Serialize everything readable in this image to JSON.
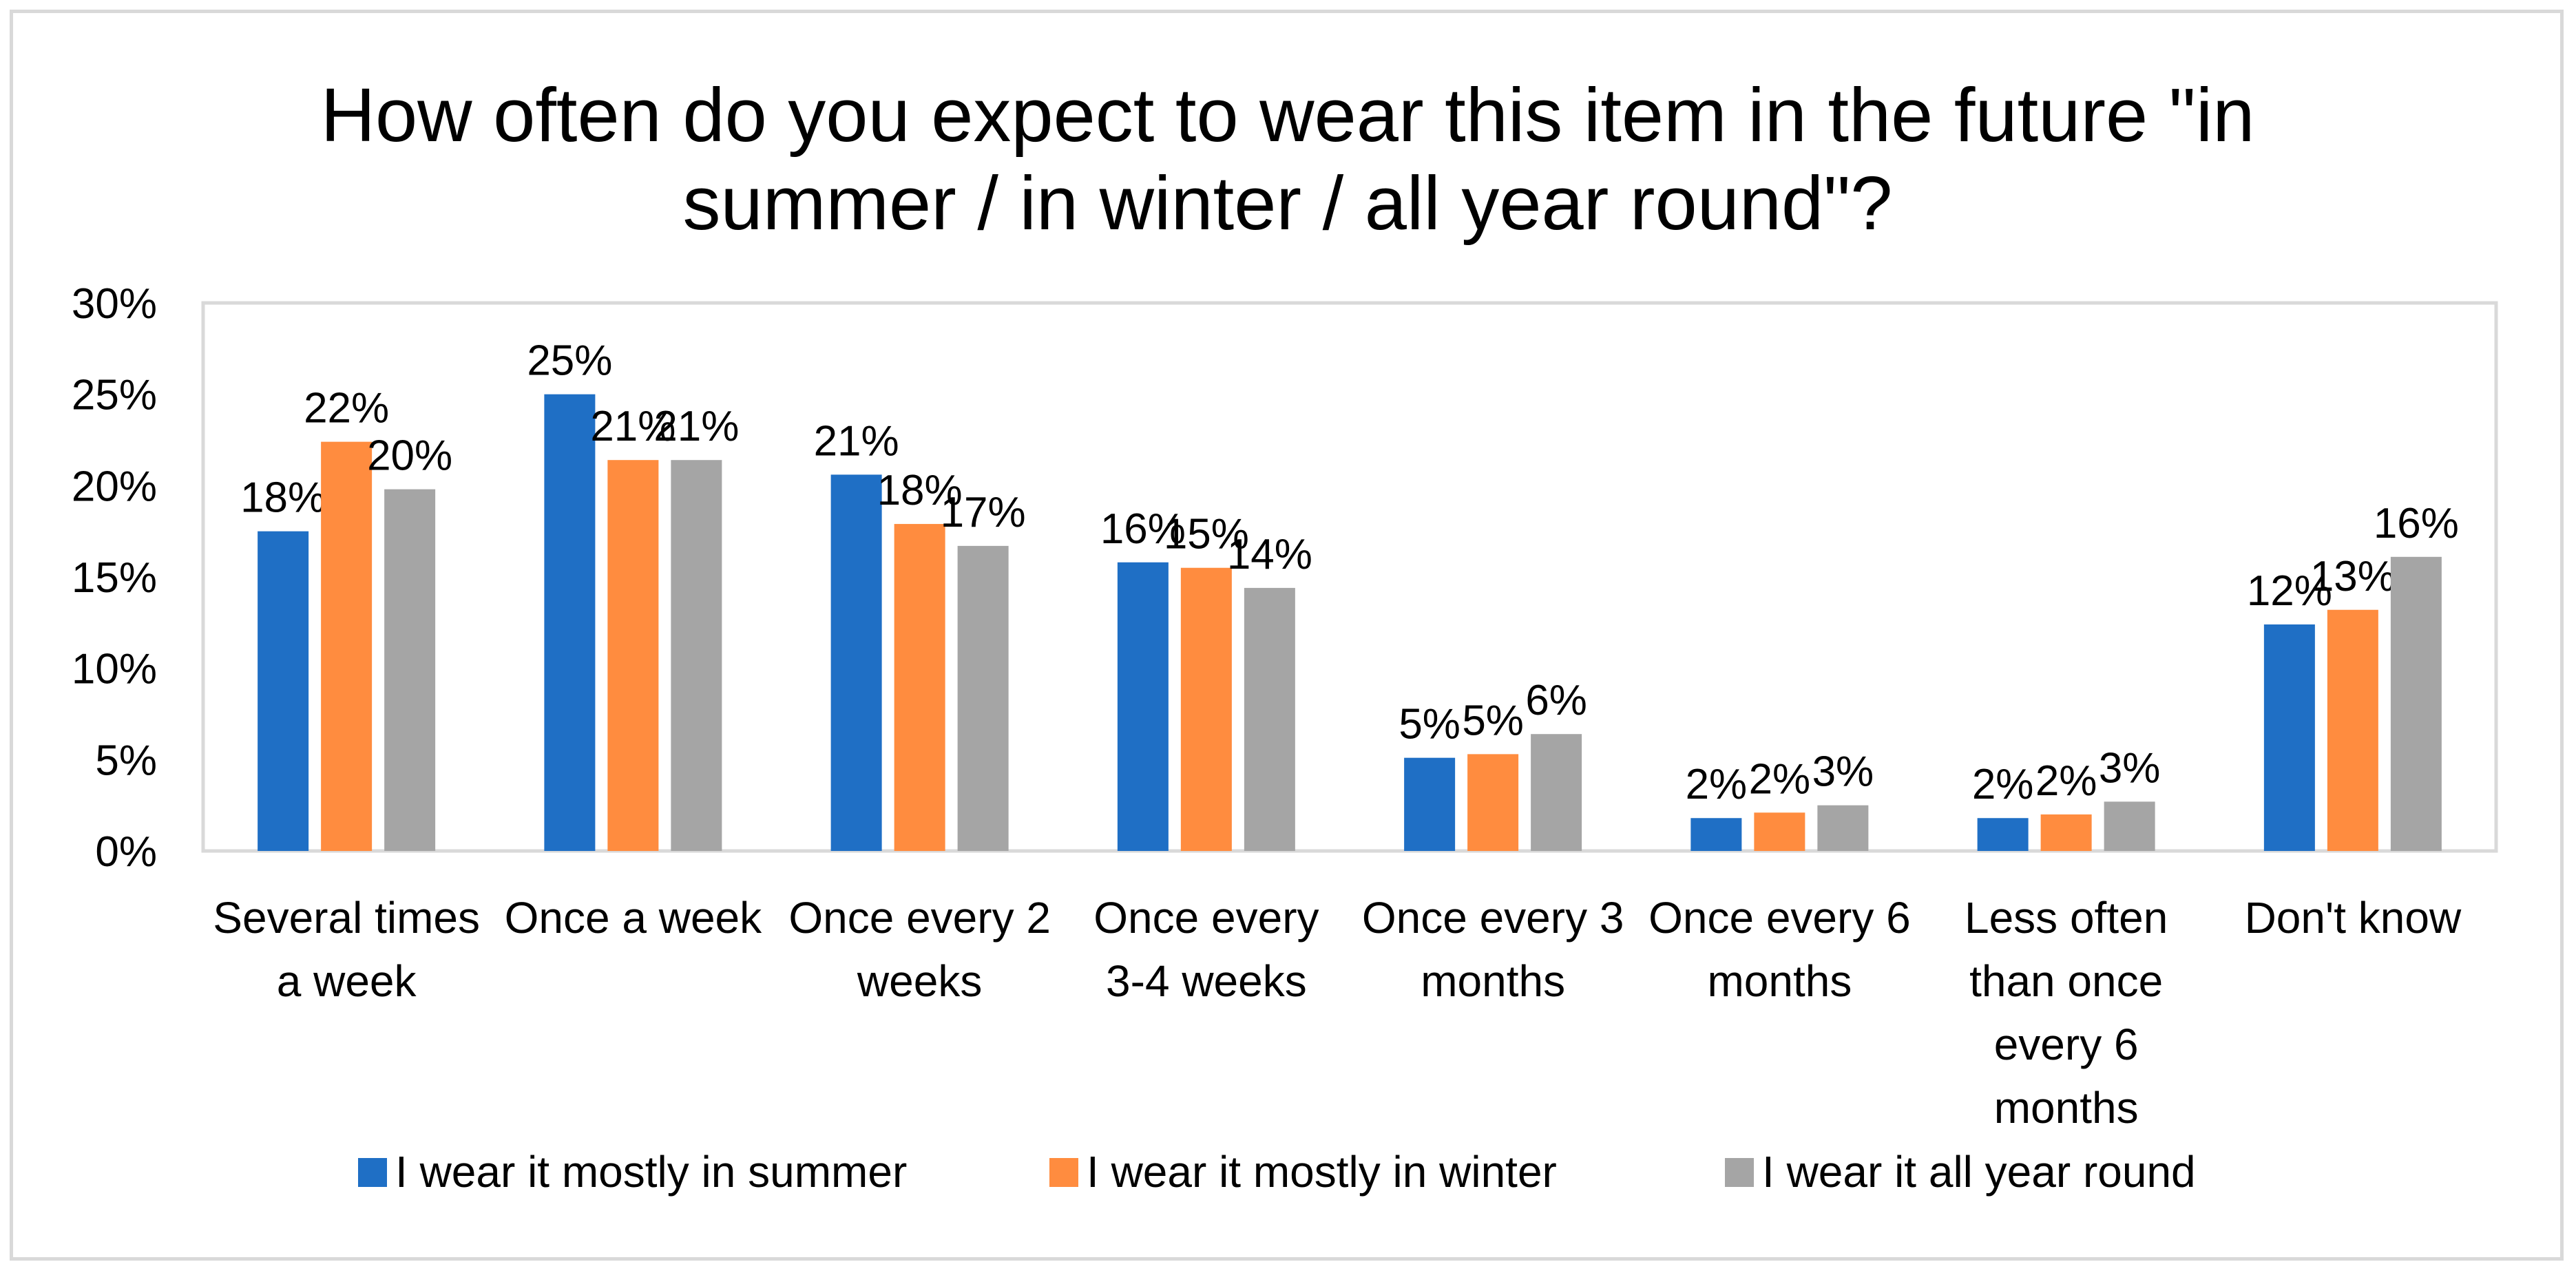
{
  "chart_data": {
    "type": "bar",
    "title": [
      "How often do you expect to wear this item in the future  \"in",
      "summer / in winter / all year round\"?"
    ],
    "categories": [
      [
        "Several times",
        "a week"
      ],
      [
        "Once a week"
      ],
      [
        "Once every 2",
        "weeks"
      ],
      [
        "Once every",
        "3-4 weeks"
      ],
      [
        "Once every 3",
        "months"
      ],
      [
        "Once every 6",
        "months"
      ],
      [
        "Less often",
        "than once",
        "every 6",
        "months"
      ],
      [
        "Don't know"
      ]
    ],
    "series": [
      {
        "name": "I wear it mostly in summer",
        "color": "#1F6FC5",
        "values": [
          17.5,
          25.0,
          20.6,
          15.8,
          5.1,
          1.8,
          1.8,
          12.4
        ],
        "labels": [
          "18%",
          "25%",
          "21%",
          "16%",
          "5%",
          "2%",
          "2%",
          "12%"
        ]
      },
      {
        "name": "I wear it mostly in winter",
        "color": "#FF8C3F",
        "values": [
          22.4,
          21.4,
          17.9,
          15.5,
          5.3,
          2.1,
          2.0,
          13.2
        ],
        "labels": [
          "22%",
          "21%",
          "18%",
          "15%",
          "5%",
          "2%",
          "2%",
          "13%"
        ]
      },
      {
        "name": "I wear it all year round",
        "color": "#A5A5A5",
        "values": [
          19.8,
          21.4,
          16.7,
          14.4,
          6.4,
          2.5,
          2.7,
          16.1
        ],
        "labels": [
          "20%",
          "21%",
          "17%",
          "14%",
          "6%",
          "3%",
          "3%",
          "16%"
        ]
      }
    ],
    "ylim": [
      0,
      30
    ],
    "yticks": [
      0,
      5,
      10,
      15,
      20,
      25,
      30
    ],
    "ytick_labels": [
      "0%",
      "5%",
      "10%",
      "15%",
      "20%",
      "25%",
      "30%"
    ],
    "grid": false,
    "legend_position": "bottom",
    "plot_border_color": "#D9D9D9"
  }
}
